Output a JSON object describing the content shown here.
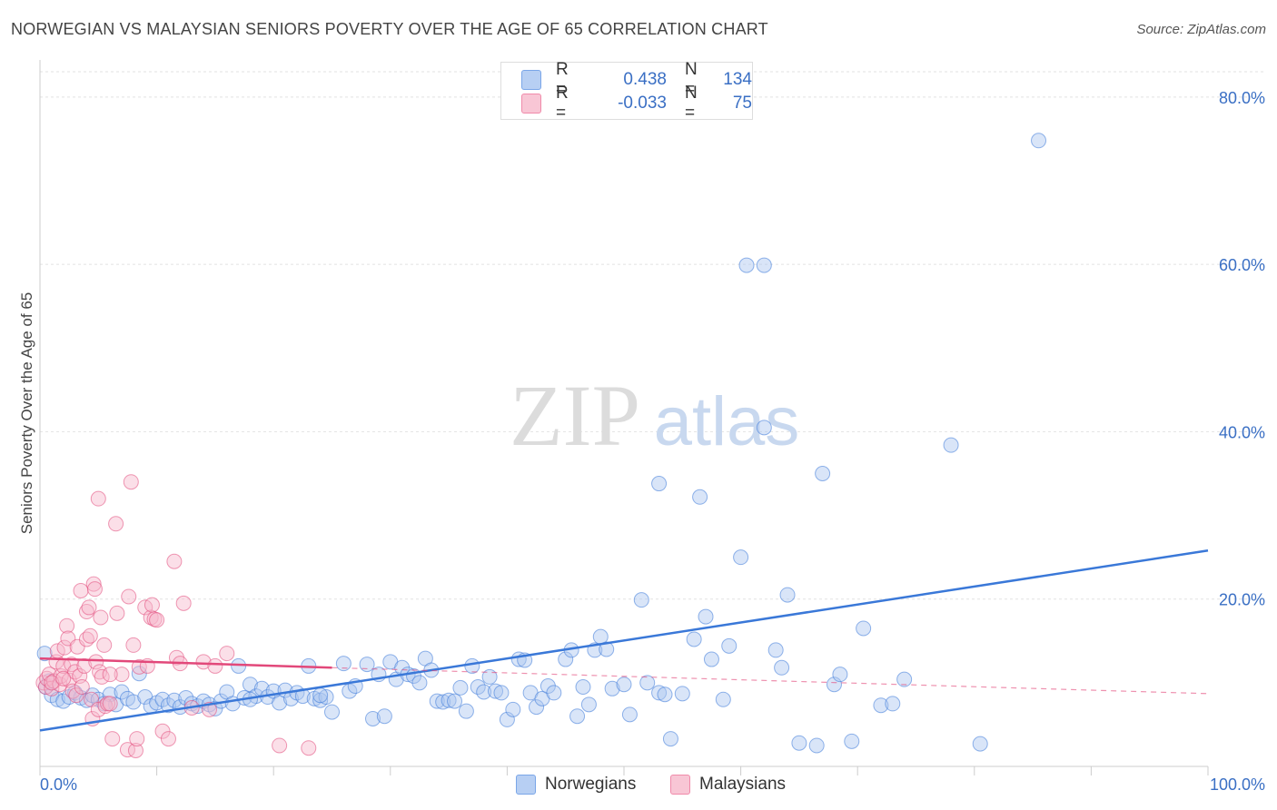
{
  "title": "NORWEGIAN VS MALAYSIAN SENIORS POVERTY OVER THE AGE OF 65 CORRELATION CHART",
  "source": "Source: ZipAtlas.com",
  "watermark": {
    "zip": "ZIP",
    "atlas": "atlas"
  },
  "legend": {
    "r_label": "R =",
    "n_label": "N =",
    "rows": [
      {
        "series": "Norwegians",
        "r": "0.438",
        "n": "134",
        "color": "#7aa6e8"
      },
      {
        "series": "Malaysians",
        "r": "-0.033",
        "n": "75",
        "color": "#f08aaa"
      }
    ]
  },
  "chart_data": {
    "type": "scatter",
    "title": "NORWEGIAN VS MALAYSIAN SENIORS POVERTY OVER THE AGE OF 65 CORRELATION CHART",
    "xlabel": "",
    "ylabel": "Seniors Poverty Over the Age of 65",
    "xlim": [
      0,
      100
    ],
    "ylim": [
      0,
      84
    ],
    "x_tick_labels": [
      "0.0%",
      "100.0%"
    ],
    "y_ticks": [
      20,
      40,
      60,
      80
    ],
    "y_tick_labels": [
      "20.0%",
      "40.0%",
      "60.0%",
      "80.0%"
    ],
    "grid": true,
    "series": [
      {
        "name": "Norwegians",
        "color": "#3a78d8",
        "fill": "#aac6f0",
        "trend": {
          "x0": 0,
          "y0": 4.3,
          "x1": 100,
          "y1": 25.8,
          "dashed_to": null
        },
        "points": [
          [
            0.4,
            13.5
          ],
          [
            0.5,
            9.5
          ],
          [
            0.8,
            10.2
          ],
          [
            1.0,
            8.5
          ],
          [
            1.5,
            8.0
          ],
          [
            2.0,
            7.8
          ],
          [
            2.5,
            8.3
          ],
          [
            3.0,
            8.8
          ],
          [
            3.5,
            8.2
          ],
          [
            4.0,
            7.9
          ],
          [
            4.5,
            8.5
          ],
          [
            5.0,
            8.0
          ],
          [
            5.5,
            7.5
          ],
          [
            6.0,
            8.6
          ],
          [
            6.5,
            7.4
          ],
          [
            7.0,
            8.9
          ],
          [
            7.5,
            8.1
          ],
          [
            8.0,
            7.7
          ],
          [
            8.5,
            11.1
          ],
          [
            9.0,
            8.3
          ],
          [
            9.5,
            7.2
          ],
          [
            10.0,
            7.6
          ],
          [
            10.5,
            8.0
          ],
          [
            11.0,
            7.3
          ],
          [
            11.5,
            7.9
          ],
          [
            12.0,
            7.1
          ],
          [
            12.5,
            8.2
          ],
          [
            13.0,
            7.5
          ],
          [
            13.5,
            7.2
          ],
          [
            14.0,
            7.8
          ],
          [
            14.5,
            7.4
          ],
          [
            15.0,
            6.9
          ],
          [
            15.5,
            7.8
          ],
          [
            16.0,
            8.9
          ],
          [
            16.5,
            7.5
          ],
          [
            17.0,
            12.0
          ],
          [
            17.5,
            8.2
          ],
          [
            18.0,
            9.8
          ],
          [
            18.5,
            8.4
          ],
          [
            19.0,
            9.3
          ],
          [
            19.5,
            8.3
          ],
          [
            20.0,
            9.0
          ],
          [
            20.5,
            7.6
          ],
          [
            21.0,
            9.1
          ],
          [
            21.5,
            8.1
          ],
          [
            22.0,
            8.8
          ],
          [
            22.5,
            8.4
          ],
          [
            23.0,
            12.0
          ],
          [
            23.5,
            8.1
          ],
          [
            24.0,
            7.9
          ],
          [
            24.5,
            8.3
          ],
          [
            25.0,
            6.5
          ],
          [
            26.0,
            12.3
          ],
          [
            26.5,
            9.0
          ],
          [
            27.0,
            9.6
          ],
          [
            28.0,
            12.2
          ],
          [
            28.5,
            5.7
          ],
          [
            29.0,
            11.0
          ],
          [
            29.5,
            6.0
          ],
          [
            30.0,
            12.5
          ],
          [
            30.5,
            10.4
          ],
          [
            31.0,
            11.8
          ],
          [
            31.5,
            11.0
          ],
          [
            32.0,
            10.8
          ],
          [
            32.5,
            10.0
          ],
          [
            33.0,
            12.9
          ],
          [
            33.5,
            11.5
          ],
          [
            34.0,
            7.8
          ],
          [
            34.5,
            7.7
          ],
          [
            35.0,
            7.9
          ],
          [
            35.5,
            7.8
          ],
          [
            36.0,
            9.4
          ],
          [
            36.5,
            6.6
          ],
          [
            37.0,
            12.0
          ],
          [
            37.5,
            9.5
          ],
          [
            38.0,
            8.9
          ],
          [
            38.5,
            10.7
          ],
          [
            39.0,
            9.0
          ],
          [
            39.5,
            8.8
          ],
          [
            40.0,
            5.6
          ],
          [
            40.5,
            6.8
          ],
          [
            41.0,
            12.8
          ],
          [
            41.5,
            12.7
          ],
          [
            42.0,
            8.8
          ],
          [
            42.5,
            7.1
          ],
          [
            43.0,
            8.1
          ],
          [
            43.5,
            9.6
          ],
          [
            44.0,
            8.8
          ],
          [
            45.0,
            12.8
          ],
          [
            45.5,
            13.9
          ],
          [
            46.0,
            6.0
          ],
          [
            46.5,
            9.5
          ],
          [
            47.0,
            7.4
          ],
          [
            47.5,
            13.9
          ],
          [
            48.0,
            15.5
          ],
          [
            48.5,
            14.0
          ],
          [
            49.0,
            9.3
          ],
          [
            50.0,
            9.8
          ],
          [
            50.5,
            6.2
          ],
          [
            51.5,
            19.9
          ],
          [
            52.0,
            10.0
          ],
          [
            53.0,
            8.8
          ],
          [
            53.5,
            8.6
          ],
          [
            54.0,
            3.3
          ],
          [
            55.0,
            8.7
          ],
          [
            56.0,
            15.2
          ],
          [
            57.0,
            17.9
          ],
          [
            57.5,
            12.8
          ],
          [
            58.5,
            8.0
          ],
          [
            59.0,
            14.4
          ],
          [
            60.0,
            25.0
          ],
          [
            60.5,
            59.9
          ],
          [
            62.0,
            40.5
          ],
          [
            62.0,
            59.9
          ],
          [
            63.0,
            13.9
          ],
          [
            63.5,
            11.8
          ],
          [
            64.0,
            20.5
          ],
          [
            65.0,
            2.8
          ],
          [
            66.5,
            2.5
          ],
          [
            67.0,
            35.0
          ],
          [
            68.0,
            9.8
          ],
          [
            68.5,
            11.0
          ],
          [
            69.5,
            3.0
          ],
          [
            70.5,
            16.5
          ],
          [
            72.0,
            7.3
          ],
          [
            73.0,
            7.5
          ],
          [
            74.0,
            10.4
          ],
          [
            78.0,
            38.4
          ],
          [
            80.5,
            2.7
          ],
          [
            85.5,
            74.8
          ],
          [
            53.0,
            33.8
          ],
          [
            56.5,
            32.2
          ],
          [
            24.0,
            8.5
          ],
          [
            18.0,
            8.0
          ]
        ]
      },
      {
        "name": "Malaysians",
        "color": "#e2487a",
        "fill": "#f6b9cc",
        "trend": {
          "x0": 0,
          "y0": 12.9,
          "x1": 25,
          "y1": 11.8,
          "dashed_to": {
            "x": 100,
            "y": 8.7
          }
        },
        "points": [
          [
            0.3,
            10.0
          ],
          [
            0.5,
            9.5
          ],
          [
            0.6,
            10.5
          ],
          [
            0.8,
            11.0
          ],
          [
            1.0,
            9.3
          ],
          [
            1.2,
            10.2
          ],
          [
            1.4,
            12.5
          ],
          [
            1.5,
            13.8
          ],
          [
            1.7,
            9.8
          ],
          [
            1.8,
            10.8
          ],
          [
            2.0,
            12.0
          ],
          [
            2.1,
            14.2
          ],
          [
            2.3,
            16.8
          ],
          [
            2.4,
            15.3
          ],
          [
            2.5,
            10.3
          ],
          [
            2.7,
            12.2
          ],
          [
            2.8,
            9.0
          ],
          [
            3.0,
            11.3
          ],
          [
            3.1,
            8.5
          ],
          [
            3.2,
            14.3
          ],
          [
            3.4,
            10.8
          ],
          [
            3.5,
            21.0
          ],
          [
            3.6,
            9.5
          ],
          [
            3.8,
            12.0
          ],
          [
            4.0,
            15.2
          ],
          [
            4.0,
            18.5
          ],
          [
            4.2,
            19.0
          ],
          [
            4.3,
            15.6
          ],
          [
            4.4,
            8.0
          ],
          [
            4.5,
            5.7
          ],
          [
            4.6,
            21.8
          ],
          [
            4.7,
            21.2
          ],
          [
            4.8,
            12.5
          ],
          [
            5.0,
            32.0
          ],
          [
            5.0,
            6.8
          ],
          [
            5.1,
            11.3
          ],
          [
            5.2,
            17.8
          ],
          [
            5.3,
            10.7
          ],
          [
            5.5,
            14.5
          ],
          [
            5.6,
            7.2
          ],
          [
            5.8,
            7.5
          ],
          [
            6.0,
            7.5
          ],
          [
            6.2,
            3.3
          ],
          [
            6.5,
            29.0
          ],
          [
            6.6,
            18.3
          ],
          [
            7.0,
            11.0
          ],
          [
            7.5,
            2.0
          ],
          [
            7.6,
            20.3
          ],
          [
            7.8,
            34.0
          ],
          [
            8.0,
            14.5
          ],
          [
            8.2,
            1.9
          ],
          [
            8.3,
            3.3
          ],
          [
            8.5,
            11.9
          ],
          [
            9.0,
            19.0
          ],
          [
            9.2,
            12.0
          ],
          [
            9.5,
            17.8
          ],
          [
            9.6,
            19.3
          ],
          [
            9.8,
            17.6
          ],
          [
            10.0,
            17.5
          ],
          [
            10.5,
            4.2
          ],
          [
            11.0,
            3.3
          ],
          [
            11.5,
            24.5
          ],
          [
            11.7,
            13.0
          ],
          [
            12.0,
            12.3
          ],
          [
            12.3,
            19.5
          ],
          [
            13.0,
            7.0
          ],
          [
            14.0,
            12.5
          ],
          [
            14.5,
            6.8
          ],
          [
            15.0,
            12.0
          ],
          [
            16.0,
            13.5
          ],
          [
            20.5,
            2.5
          ],
          [
            23.0,
            2.2
          ],
          [
            1.0,
            10.0
          ],
          [
            2.0,
            10.5
          ],
          [
            6.0,
            11.0
          ]
        ]
      }
    ],
    "legend": [
      {
        "name": "Norwegians",
        "r": 0.438,
        "n": 134
      },
      {
        "name": "Malaysians",
        "r": -0.033,
        "n": 75
      }
    ]
  }
}
